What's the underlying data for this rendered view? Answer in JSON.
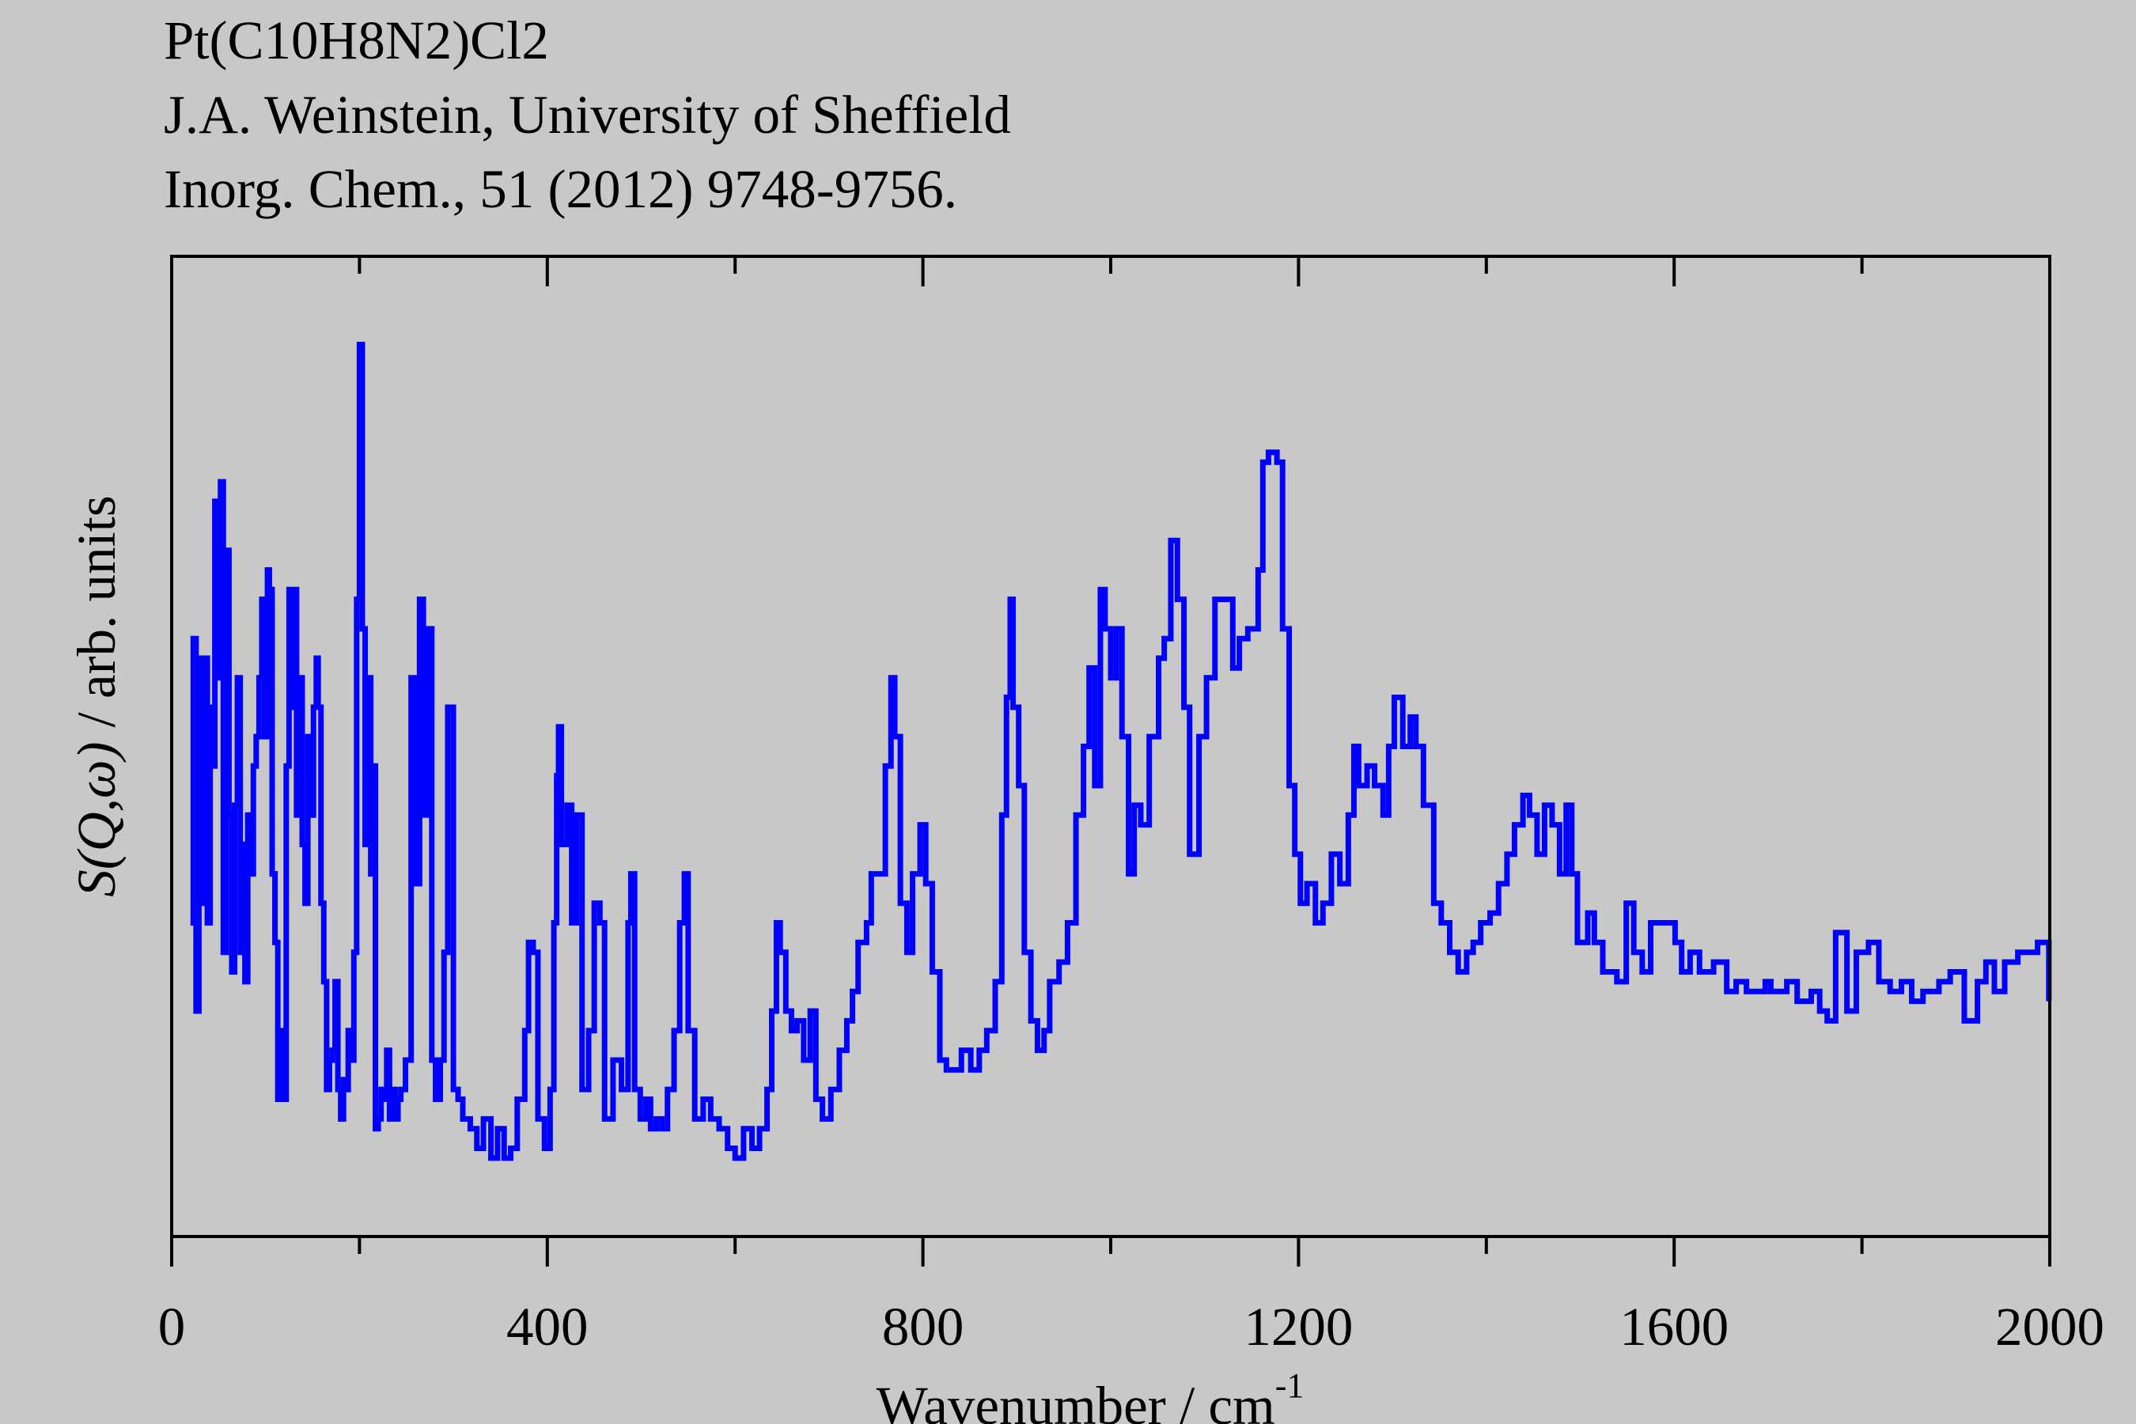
{
  "chart_data": {
    "type": "line",
    "step": true,
    "title_lines": [
      "Pt(C10H8N2)Cl2",
      "J.A. Weinstein, University of Sheffield",
      "Inorg. Chem., 51 (2012) 9748-9756."
    ],
    "x_label": "Wavenumber / cm",
    "x_label_sup": "-1",
    "y_label_italic": "S(Q,ω)",
    "y_label": "/ arb. units",
    "xlim": [
      0,
      2000
    ],
    "xticks": [
      0,
      400,
      800,
      1200,
      1600,
      2000
    ],
    "xminor": [
      200,
      600,
      1000,
      1400,
      1800
    ],
    "ylim": [
      0,
      100
    ],
    "series": [
      {
        "name": "S(Q,ω)",
        "color": "#0000ff",
        "x": [
          20,
          23,
          26,
          29,
          32,
          35,
          38,
          41,
          44,
          46,
          49,
          52,
          55,
          58,
          61,
          64,
          67,
          70,
          73,
          75,
          78,
          81,
          84,
          87,
          90,
          93,
          96,
          99,
          102,
          104,
          107,
          110,
          113,
          116,
          119,
          122,
          125,
          128,
          131,
          133,
          136,
          139,
          142,
          145,
          148,
          151,
          154,
          156,
          159,
          162,
          165,
          168,
          171,
          174,
          177,
          180,
          183,
          185,
          188,
          191,
          194,
          197,
          200,
          203,
          206,
          209,
          212,
          214,
          217,
          220,
          223,
          226,
          229,
          232,
          235,
          238,
          241,
          244,
          249,
          255,
          260,
          264,
          268,
          273,
          277,
          281,
          286,
          290,
          294,
          300,
          305,
          310,
          318,
          325,
          332,
          340,
          347,
          354,
          361,
          368,
          376,
          380,
          385,
          390,
          397,
          403,
          407,
          410,
          412,
          415,
          421,
          426,
          431,
          437,
          444,
          450,
          456,
          461,
          470,
          479,
          486,
          489,
          493,
          499,
          505,
          510,
          516,
          522,
          528,
          535,
          541,
          546,
          550,
          557,
          566,
          574,
          583,
          592,
          600,
          609,
          618,
          626,
          634,
          639,
          644,
          648,
          654,
          660,
          666,
          673,
          680,
          686,
          693,
          702,
          711,
          719,
          725,
          731,
          740,
          745,
          753,
          760,
          766,
          770,
          776,
          783,
          789,
          797,
          803,
          810,
          818,
          825,
          832,
          841,
          851,
          860,
          868,
          877,
          884,
          889,
          893,
          896,
          902,
          908,
          915,
          922,
          929,
          935,
          945,
          954,
          963,
          971,
          977,
          983,
          989,
          994,
          1000,
          1006,
          1012,
          1019,
          1025,
          1032,
          1041,
          1051,
          1057,
          1064,
          1071,
          1078,
          1084,
          1094,
          1102,
          1111,
          1122,
          1130,
          1137,
          1146,
          1157,
          1162,
          1168,
          1177,
          1183,
          1190,
          1196,
          1202,
          1209,
          1218,
          1226,
          1235,
          1244,
          1253,
          1259,
          1264,
          1273,
          1281,
          1290,
          1296,
          1302,
          1311,
          1319,
          1325,
          1333,
          1344,
          1352,
          1361,
          1370,
          1379,
          1386,
          1394,
          1404,
          1413,
          1422,
          1430,
          1439,
          1446,
          1454,
          1462,
          1470,
          1478,
          1485,
          1491,
          1497,
          1508,
          1515,
          1524,
          1539,
          1549,
          1557,
          1566,
          1575,
          1590,
          1601,
          1608,
          1617,
          1627,
          1642,
          1656,
          1666,
          1677,
          1697,
          1703,
          1720,
          1731,
          1746,
          1755,
          1763,
          1772,
          1784,
          1794,
          1807,
          1818,
          1830,
          1842,
          1853,
          1865,
          1882,
          1894,
          1909,
          1923,
          1932,
          1941,
          1952,
          1966,
          1978,
          1987,
          1999
        ],
        "values": [
          32,
          61,
          23,
          59,
          34,
          59,
          32,
          54,
          48,
          75,
          57,
          77,
          29,
          70,
          43,
          27,
          44,
          57,
          29,
          40,
          26,
          43,
          37,
          48,
          51,
          57,
          65,
          51,
          68,
          66,
          37,
          30,
          14,
          21,
          14,
          48,
          66,
          54,
          66,
          43,
          57,
          40,
          34,
          51,
          43,
          54,
          59,
          54,
          34,
          26,
          15,
          18,
          19,
          26,
          15,
          12,
          16,
          15,
          21,
          18,
          29,
          65,
          91,
          62,
          40,
          57,
          37,
          48,
          11,
          12,
          15,
          14,
          19,
          12,
          15,
          12,
          14,
          15,
          18,
          57,
          36,
          65,
          43,
          62,
          18,
          14,
          18,
          29,
          54,
          15,
          14,
          12,
          11,
          9,
          12,
          8,
          11,
          8,
          9,
          14,
          21,
          30,
          29,
          12,
          9,
          15,
          32,
          47,
          52,
          40,
          44,
          32,
          43,
          15,
          21,
          34,
          32,
          12,
          18,
          15,
          32,
          37,
          15,
          12,
          14,
          11,
          12,
          11,
          15,
          21,
          32,
          37,
          21,
          12,
          14,
          12,
          11,
          9,
          8,
          11,
          9,
          11,
          15,
          23,
          32,
          29,
          23,
          21,
          22,
          18,
          23,
          14,
          12,
          15,
          19,
          22,
          25,
          30,
          32,
          37,
          37,
          48,
          57,
          51,
          34,
          29,
          37,
          42,
          36,
          27,
          18,
          17,
          17,
          19,
          17,
          19,
          21,
          26,
          43,
          55,
          65,
          54,
          46,
          29,
          22,
          19,
          21,
          26,
          28,
          32,
          43,
          50,
          58,
          46,
          66,
          62,
          57,
          62,
          51,
          37,
          44,
          42,
          51,
          59,
          61,
          71,
          65,
          54,
          39,
          51,
          57,
          65,
          65,
          58,
          61,
          62,
          68,
          79,
          80,
          79,
          62,
          46,
          39,
          34,
          36,
          32,
          34,
          39,
          36,
          43,
          50,
          46,
          48,
          46,
          43,
          50,
          55,
          50,
          53,
          50,
          44,
          34,
          32,
          29,
          27,
          29,
          30,
          32,
          33,
          36,
          39,
          42,
          45,
          43,
          39,
          44,
          42,
          37,
          44,
          37,
          30,
          33,
          30,
          27,
          26,
          34,
          29,
          27,
          32,
          32,
          30,
          27,
          29,
          27,
          28,
          25,
          26,
          25,
          26,
          25,
          26,
          24,
          25,
          23,
          22,
          31,
          23,
          29,
          30,
          26,
          25,
          26,
          24,
          25,
          26,
          27,
          22,
          26,
          28,
          25,
          28,
          29,
          29,
          30,
          24
        ]
      }
    ]
  }
}
